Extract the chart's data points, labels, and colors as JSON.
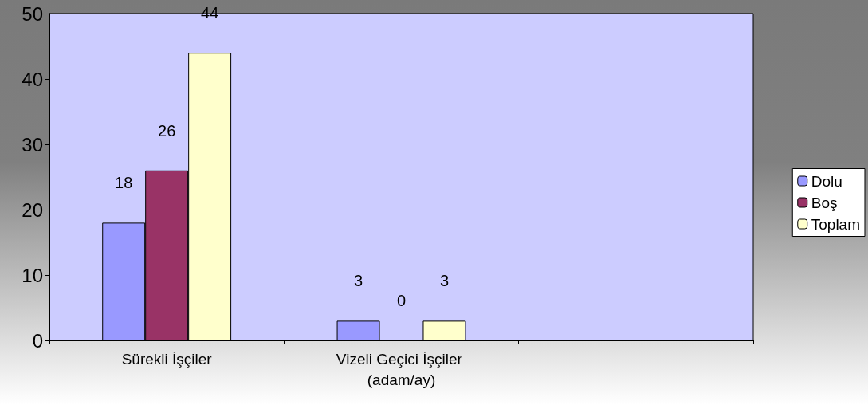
{
  "chart_data": {
    "type": "bar",
    "categories": [
      "Sürekli İşçiler",
      "Vizeli Geçici İşçiler (adam/ay)",
      null
    ],
    "series": [
      {
        "name": "Dolu",
        "color": "#9999ff",
        "values": [
          18,
          3,
          null
        ]
      },
      {
        "name": "Boş",
        "color": "#993366",
        "values": [
          26,
          0,
          null
        ]
      },
      {
        "name": "Toplam",
        "color": "#ffffcc",
        "values": [
          44,
          3,
          null
        ]
      }
    ],
    "ylim": [
      0,
      50
    ],
    "yticks": [
      0,
      10,
      20,
      30,
      40,
      50
    ],
    "grid": false,
    "legend": "right",
    "data_labels": true
  }
}
